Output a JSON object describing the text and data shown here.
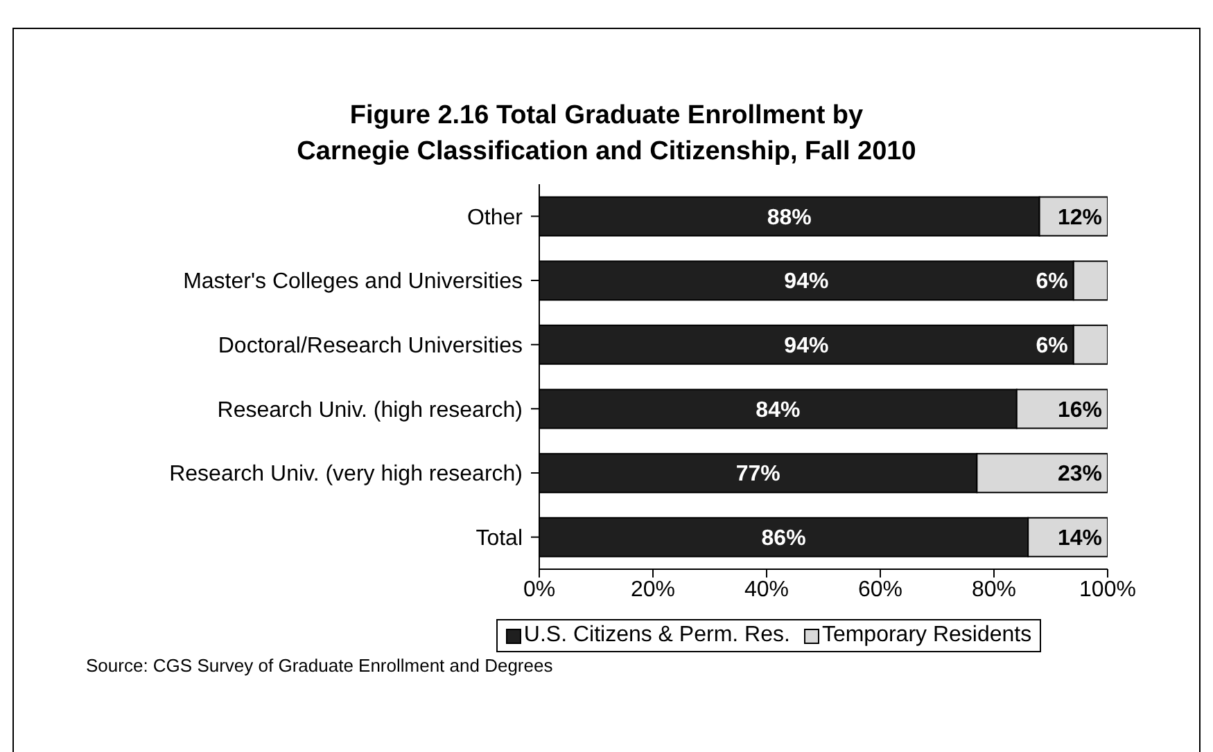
{
  "chart_data": {
    "type": "bar",
    "orientation": "horizontal",
    "stacked": true,
    "title": "Figure 2.16  Total Graduate Enrollment by Carnegie Classification and Citizenship, Fall 2010",
    "categories": [
      "Other",
      "Master's Colleges and Universities",
      "Doctoral/Research Universities",
      "Research Univ. (high research)",
      "Research Univ. (very high research)",
      "Total"
    ],
    "series": [
      {
        "name": "U.S. Citizens & Perm. Res.",
        "color": "#1f1f1f",
        "values": [
          88,
          94,
          94,
          84,
          77,
          86
        ],
        "value_labels": [
          "88%",
          "94%",
          "94%",
          "84%",
          "77%",
          "86%"
        ]
      },
      {
        "name": "Temporary Residents",
        "color": "#d9d9d9",
        "values": [
          12,
          6,
          6,
          16,
          23,
          14
        ],
        "value_labels": [
          "12%",
          "6%",
          "6%",
          "16%",
          "23%",
          "14%"
        ]
      }
    ],
    "xlim": [
      0,
      100
    ],
    "xticks": [
      {
        "value": 0,
        "label": "0%"
      },
      {
        "value": 20,
        "label": "20%"
      },
      {
        "value": 40,
        "label": "40%"
      },
      {
        "value": 60,
        "label": "60%"
      },
      {
        "value": 80,
        "label": "80%"
      },
      {
        "value": 100,
        "label": "100%"
      }
    ],
    "grid": false,
    "legend": "bottom",
    "annotations": [
      "Source: CGS Survey of Graduate Enrollment and Degrees"
    ]
  }
}
